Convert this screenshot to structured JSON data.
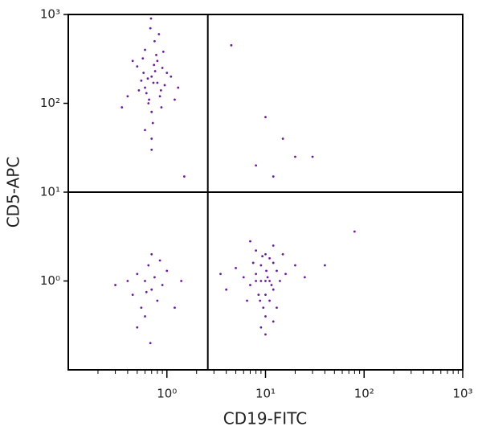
{
  "chart_data": {
    "type": "scatter",
    "x_label": "CD19-FITC",
    "y_label": "CD5-APC",
    "xscale": "log",
    "yscale": "log",
    "xlim": [
      0.1,
      1000
    ],
    "ylim": [
      0.1,
      1000
    ],
    "xticks": [
      {
        "value": 1,
        "label": "10⁰"
      },
      {
        "value": 10,
        "label": "10¹"
      },
      {
        "value": 100,
        "label": "10²"
      },
      {
        "value": 1000,
        "label": "10³"
      }
    ],
    "yticks": [
      {
        "value": 1,
        "label": "10⁰"
      },
      {
        "value": 10,
        "label": "10¹"
      },
      {
        "value": 100,
        "label": "10²"
      },
      {
        "value": 1000,
        "label": "10³"
      }
    ],
    "xminorticks": [
      0.2,
      0.3,
      0.4,
      0.5,
      0.6,
      0.7,
      0.8,
      0.9,
      2,
      3,
      4,
      5,
      6,
      7,
      8,
      9,
      20,
      30,
      40,
      50,
      60,
      70,
      80,
      90,
      200,
      300,
      400,
      500,
      600,
      700,
      800,
      900
    ],
    "quadrant_gates": {
      "x": 2.6,
      "y": 10
    },
    "series": [
      {
        "color": "#6a1b9a",
        "x": [
          0.7,
          0.6,
          0.8,
          0.65,
          0.9,
          0.75,
          0.55,
          0.85,
          0.7,
          0.6,
          1.0,
          0.5,
          0.72,
          0.95,
          0.68,
          0.62,
          0.78,
          0.88,
          0.58,
          0.7,
          0.45,
          1.1,
          0.8,
          0.66,
          0.74,
          0.52,
          0.92,
          0.6,
          0.83,
          0.7,
          1.3,
          0.4,
          0.76,
          0.64,
          0.87,
          0.57,
          0.69,
          1.2,
          0.35,
          0.73,
          10,
          8,
          12,
          9,
          11,
          7,
          13,
          10,
          9.5,
          8.5,
          11,
          6,
          14,
          10,
          7.5,
          12,
          9,
          10.5,
          8,
          11.5,
          5,
          16,
          9,
          10,
          12,
          4,
          20,
          8.8,
          10.2,
          7,
          13,
          9.3,
          11,
          6.5,
          15,
          3.5,
          10,
          12,
          8,
          25,
          0.6,
          0.7,
          0.5,
          0.8,
          0.65,
          0.9,
          0.55,
          0.75,
          0.45,
          1.0,
          0.3,
          0.6,
          1.4,
          0.7,
          0.5,
          0.85,
          0.62,
          0.4,
          1.2,
          0.68,
          4.5,
          10,
          15,
          20,
          12,
          8,
          30,
          80,
          40,
          1.5
        ],
        "y": [
          200,
          150,
          300,
          100,
          250,
          500,
          180,
          120,
          80,
          400,
          220,
          260,
          60,
          160,
          700,
          130,
          350,
          90,
          220,
          40,
          300,
          200,
          170,
          110,
          270,
          140,
          380,
          50,
          600,
          30,
          150,
          120,
          230,
          190,
          140,
          320,
          900,
          110,
          90,
          170,
          1.0,
          1.2,
          0.8,
          1.5,
          0.6,
          0.9,
          1.3,
          2.0,
          0.5,
          0.7,
          1.8,
          1.1,
          1.0,
          0.4,
          1.6,
          2.5,
          0.3,
          1.1,
          2.2,
          0.9,
          1.4,
          1.2,
          1.0,
          0.7,
          1.6,
          0.8,
          1.5,
          0.6,
          1.3,
          2.8,
          0.5,
          1.9,
          1.0,
          0.6,
          2.0,
          1.2,
          0.25,
          0.35,
          1.0,
          1.1,
          1.0,
          0.8,
          1.2,
          0.6,
          1.5,
          0.9,
          0.5,
          1.1,
          0.7,
          1.3,
          0.9,
          0.4,
          1.0,
          2.0,
          0.3,
          1.7,
          0.75,
          1.0,
          0.5,
          0.2,
          450,
          70,
          40,
          25,
          15,
          20,
          25,
          3.6,
          1.5,
          15
        ]
      }
    ]
  }
}
